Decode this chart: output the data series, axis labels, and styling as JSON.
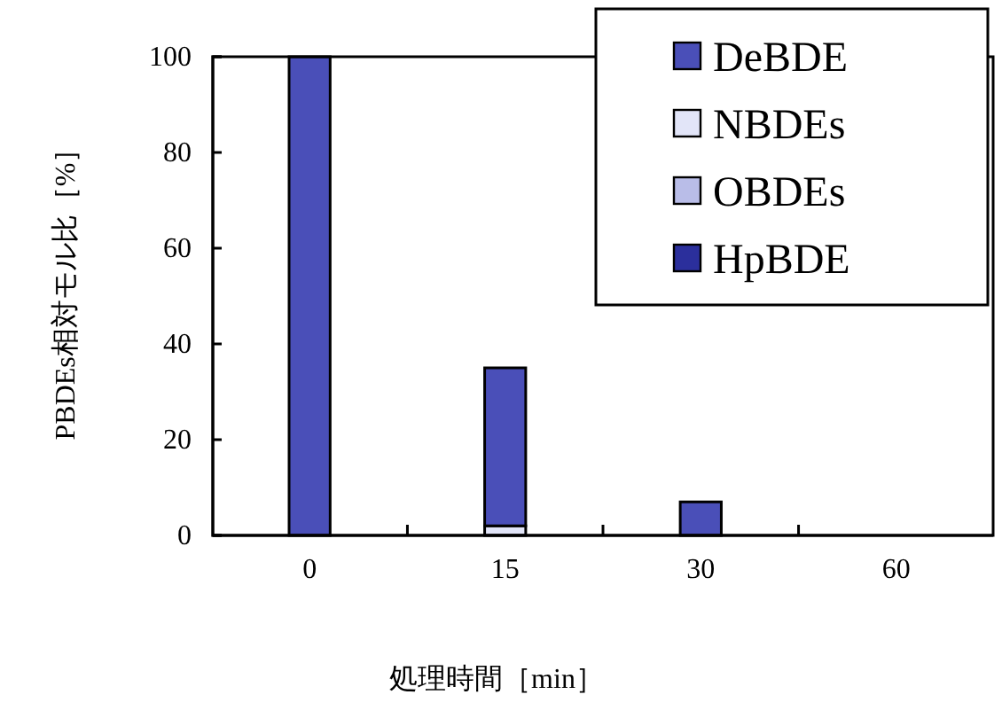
{
  "chart_data": {
    "type": "bar",
    "stacked": true,
    "xlabel": "処理時間［min］",
    "ylabel": "PBDEs相対モル比［%］",
    "categories": [
      "0",
      "15",
      "30",
      "60"
    ],
    "series": [
      {
        "name": "HpBDE",
        "color": "#2b2f9c",
        "values": [
          0,
          0,
          0,
          0
        ]
      },
      {
        "name": "OBDEs",
        "color": "#b9bde8",
        "values": [
          0,
          0,
          0,
          0
        ]
      },
      {
        "name": "NBDEs",
        "color": "#e2e5f8",
        "values": [
          0,
          2,
          null,
          0
        ]
      },
      {
        "name": "DeBDE",
        "color": "#4a4fb8",
        "values": [
          100,
          33,
          7,
          0
        ]
      }
    ],
    "ylim": [
      0,
      100
    ],
    "yticks": [
      0,
      20,
      40,
      60,
      80,
      100
    ],
    "grid": false,
    "legend": "top right"
  }
}
